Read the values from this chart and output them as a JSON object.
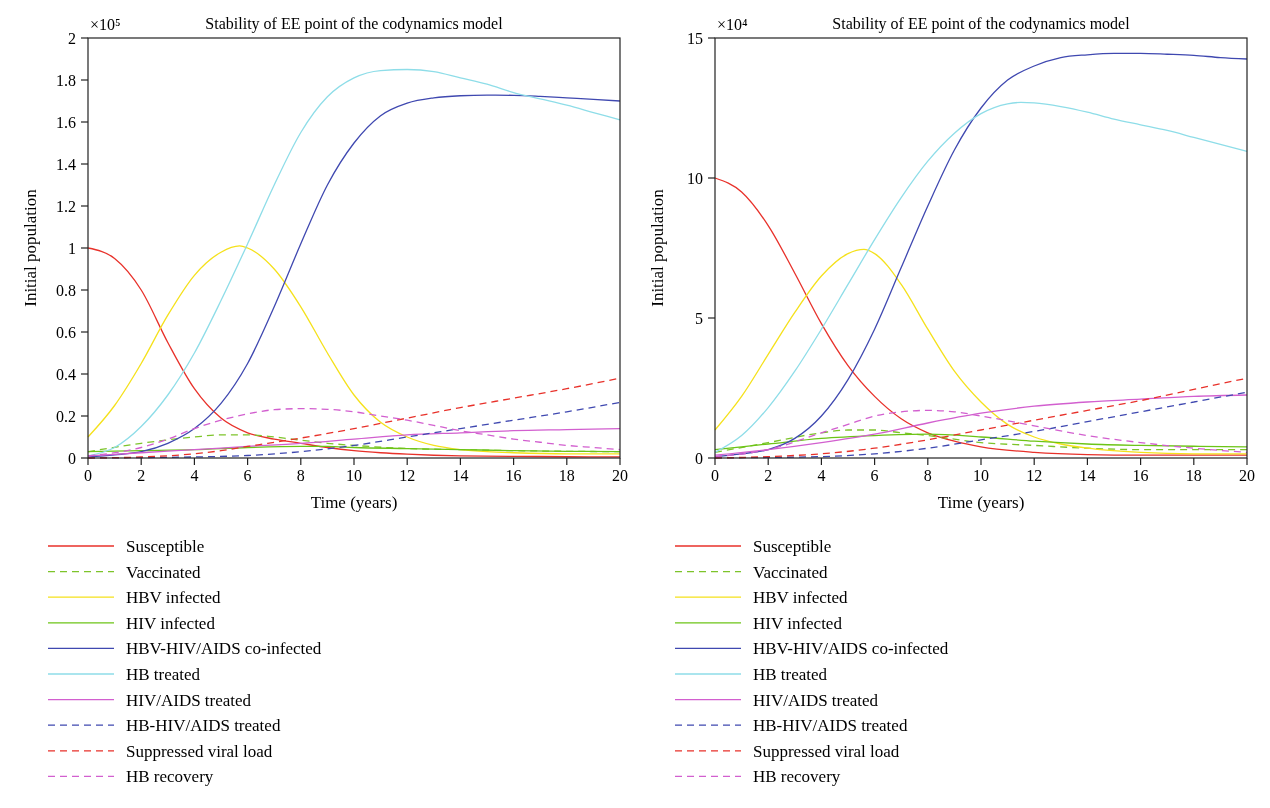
{
  "chart_data": [
    {
      "type": "line",
      "title": "Stability of EE point of the codynamics model",
      "xlabel": "Time (years)",
      "ylabel": "Initial population",
      "annotations": [
        "×10⁵"
      ],
      "xlim": [
        0,
        20
      ],
      "xticks": [
        0,
        2,
        4,
        6,
        8,
        10,
        12,
        14,
        16,
        18,
        20
      ],
      "ylim": [
        0,
        2
      ],
      "yticks": [
        0,
        0.2,
        0.4,
        0.6,
        0.8,
        1,
        1.2,
        1.4,
        1.6,
        1.8,
        2
      ],
      "grid": false,
      "legend": "bottom",
      "series": [
        {
          "name": "Susceptible",
          "color": "#e8312a",
          "line_style": "solid",
          "x": [
            0,
            1,
            2,
            3,
            4,
            5,
            6,
            7,
            8,
            9,
            10,
            11,
            12,
            13,
            14,
            16,
            18,
            20
          ],
          "values": [
            1.0,
            0.95,
            0.8,
            0.55,
            0.33,
            0.19,
            0.12,
            0.09,
            0.07,
            0.05,
            0.035,
            0.025,
            0.018,
            0.013,
            0.01,
            0.008,
            0.006,
            0.005
          ]
        },
        {
          "name": "Vaccinated",
          "color": "#7dc42a",
          "line_style": "dashed",
          "x": [
            0,
            2,
            4,
            5,
            6,
            7,
            8,
            9,
            10,
            12,
            14,
            16,
            18,
            20
          ],
          "values": [
            0.03,
            0.07,
            0.1,
            0.11,
            0.11,
            0.1,
            0.085,
            0.07,
            0.06,
            0.045,
            0.04,
            0.035,
            0.032,
            0.03
          ]
        },
        {
          "name": "HBV infected",
          "color": "#f5e11b",
          "line_style": "solid",
          "x": [
            0,
            1,
            2,
            3,
            4,
            5,
            5.7,
            6,
            7,
            8,
            9,
            10,
            11,
            12,
            13,
            14,
            15,
            16,
            18,
            20
          ],
          "values": [
            0.1,
            0.25,
            0.45,
            0.68,
            0.87,
            0.98,
            1.01,
            1.0,
            0.9,
            0.72,
            0.5,
            0.3,
            0.17,
            0.1,
            0.06,
            0.04,
            0.03,
            0.025,
            0.02,
            0.02
          ]
        },
        {
          "name": "HIV infected",
          "color": "#6cc417",
          "line_style": "solid",
          "x": [
            0,
            2,
            4,
            6,
            8,
            9,
            10,
            12,
            14,
            16,
            18,
            20
          ],
          "values": [
            0.03,
            0.035,
            0.04,
            0.05,
            0.055,
            0.055,
            0.05,
            0.045,
            0.04,
            0.035,
            0.032,
            0.03
          ]
        },
        {
          "name": "HBV-HIV/AIDS co-infected",
          "color": "#3f48b0",
          "line_style": "solid",
          "x": [
            0,
            1,
            2,
            3,
            4,
            5,
            6,
            7,
            8,
            9,
            10,
            11,
            12,
            13,
            14,
            15,
            16,
            17,
            18,
            19,
            20
          ],
          "values": [
            0.005,
            0.015,
            0.03,
            0.07,
            0.14,
            0.26,
            0.45,
            0.72,
            1.02,
            1.3,
            1.5,
            1.63,
            1.69,
            1.715,
            1.725,
            1.728,
            1.727,
            1.722,
            1.715,
            1.708,
            1.7
          ]
        },
        {
          "name": "HB treated",
          "color": "#8edde8",
          "line_style": "solid",
          "x": [
            0,
            1,
            2,
            3,
            4,
            5,
            6,
            7,
            8,
            9,
            10,
            11,
            12,
            13,
            14,
            15,
            16,
            17,
            18,
            19,
            20
          ],
          "values": [
            0.01,
            0.05,
            0.15,
            0.3,
            0.5,
            0.75,
            1.02,
            1.3,
            1.55,
            1.72,
            1.81,
            1.845,
            1.85,
            1.84,
            1.81,
            1.78,
            1.74,
            1.71,
            1.68,
            1.645,
            1.61
          ]
        },
        {
          "name": "HIV/AIDS treated",
          "color": "#d25fcf",
          "line_style": "solid",
          "x": [
            0,
            2,
            4,
            6,
            8,
            10,
            12,
            14,
            16,
            18,
            20
          ],
          "values": [
            0.01,
            0.025,
            0.04,
            0.055,
            0.07,
            0.09,
            0.11,
            0.12,
            0.13,
            0.135,
            0.14
          ]
        },
        {
          "name": "HB-HIV/AIDS treated",
          "color": "#3f48b0",
          "line_style": "dashed",
          "x": [
            0,
            2,
            4,
            6,
            8,
            10,
            12,
            14,
            16,
            18,
            20
          ],
          "values": [
            0,
            0.002,
            0.005,
            0.012,
            0.03,
            0.06,
            0.1,
            0.14,
            0.18,
            0.22,
            0.265
          ]
        },
        {
          "name": "Suppressed viral load",
          "color": "#e8312a",
          "line_style": "dashed",
          "x": [
            0,
            2,
            4,
            5,
            6,
            7,
            8,
            10,
            12,
            14,
            16,
            18,
            20
          ],
          "values": [
            0,
            0.005,
            0.02,
            0.035,
            0.055,
            0.075,
            0.095,
            0.14,
            0.19,
            0.24,
            0.285,
            0.33,
            0.38
          ]
        },
        {
          "name": "HB recovery",
          "color": "#d25fcf",
          "line_style": "dashed",
          "x": [
            0,
            2,
            3,
            4,
            5,
            6,
            7,
            8,
            9,
            10,
            11,
            12,
            13,
            14,
            15,
            16,
            17,
            18,
            19,
            20
          ],
          "values": [
            0.01,
            0.05,
            0.09,
            0.14,
            0.18,
            0.21,
            0.23,
            0.235,
            0.232,
            0.22,
            0.2,
            0.18,
            0.155,
            0.13,
            0.11,
            0.09,
            0.075,
            0.06,
            0.05,
            0.04
          ]
        }
      ]
    },
    {
      "type": "line",
      "title": "Stability of EE point of the codynamics model",
      "xlabel": "Time (years)",
      "ylabel": "Initial population",
      "annotations": [
        "×10⁴"
      ],
      "xlim": [
        0,
        20
      ],
      "xticks": [
        0,
        2,
        4,
        6,
        8,
        10,
        12,
        14,
        16,
        18,
        20
      ],
      "ylim": [
        0,
        15
      ],
      "yticks": [
        0,
        5,
        10,
        15
      ],
      "grid": false,
      "legend": "bottom",
      "series": [
        {
          "name": "Susceptible",
          "color": "#e8312a",
          "line_style": "solid",
          "x": [
            0,
            1,
            2,
            3,
            4,
            5,
            6,
            7,
            8,
            9,
            10,
            12,
            14,
            16,
            18,
            20
          ],
          "values": [
            10,
            9.5,
            8.3,
            6.6,
            4.8,
            3.3,
            2.2,
            1.4,
            0.9,
            0.6,
            0.4,
            0.2,
            0.12,
            0.1,
            0.1,
            0.1
          ]
        },
        {
          "name": "Vaccinated",
          "color": "#7dc42a",
          "line_style": "dashed",
          "x": [
            0,
            2,
            4,
            5,
            6,
            7,
            8,
            10,
            12,
            14,
            16,
            18,
            20
          ],
          "values": [
            0.2,
            0.55,
            0.9,
            1.0,
            1.0,
            0.9,
            0.8,
            0.55,
            0.45,
            0.35,
            0.3,
            0.3,
            0.3
          ]
        },
        {
          "name": "HBV infected",
          "color": "#f5e11b",
          "line_style": "solid",
          "x": [
            0,
            1,
            2,
            3,
            4,
            5,
            5.6,
            6,
            7,
            8,
            9,
            10,
            11,
            12,
            13,
            14,
            16,
            18,
            20
          ],
          "values": [
            1,
            2.2,
            3.7,
            5.2,
            6.5,
            7.3,
            7.45,
            7.3,
            6.2,
            4.6,
            3.1,
            2.0,
            1.2,
            0.75,
            0.5,
            0.35,
            0.2,
            0.15,
            0.15
          ]
        },
        {
          "name": "HIV infected",
          "color": "#6cc417",
          "line_style": "solid",
          "x": [
            0,
            2,
            4,
            6,
            8,
            10,
            12,
            14,
            16,
            18,
            20
          ],
          "values": [
            0.3,
            0.5,
            0.7,
            0.8,
            0.85,
            0.75,
            0.6,
            0.5,
            0.45,
            0.42,
            0.4
          ]
        },
        {
          "name": "HBV-HIV/AIDS co-infected",
          "color": "#3f48b0",
          "line_style": "solid",
          "x": [
            0,
            1,
            2,
            3,
            4,
            5,
            6,
            7,
            8,
            9,
            10,
            11,
            12,
            13,
            14,
            15,
            16,
            17,
            18,
            19,
            20
          ],
          "values": [
            0.05,
            0.15,
            0.3,
            0.7,
            1.5,
            2.8,
            4.6,
            6.8,
            9.0,
            11.0,
            12.5,
            13.5,
            14.0,
            14.3,
            14.4,
            14.45,
            14.45,
            14.42,
            14.38,
            14.3,
            14.25
          ]
        },
        {
          "name": "HB treated",
          "color": "#8edde8",
          "line_style": "solid",
          "x": [
            0,
            1,
            2,
            3,
            4,
            5,
            6,
            7,
            8,
            9,
            10,
            11,
            11.5,
            12,
            13,
            14,
            15,
            16,
            17,
            18,
            19,
            20
          ],
          "values": [
            0.2,
            0.8,
            1.8,
            3.1,
            4.6,
            6.2,
            7.8,
            9.3,
            10.6,
            11.6,
            12.3,
            12.65,
            12.7,
            12.68,
            12.55,
            12.35,
            12.1,
            11.9,
            11.7,
            11.45,
            11.2,
            10.95
          ]
        },
        {
          "name": "HIV/AIDS treated",
          "color": "#d25fcf",
          "line_style": "solid",
          "x": [
            0,
            2,
            4,
            6,
            8,
            10,
            12,
            14,
            16,
            18,
            20
          ],
          "values": [
            0.1,
            0.3,
            0.55,
            0.85,
            1.25,
            1.6,
            1.85,
            2.0,
            2.1,
            2.2,
            2.25
          ]
        },
        {
          "name": "HB-HIV/AIDS treated",
          "color": "#3f48b0",
          "line_style": "dashed",
          "x": [
            0,
            2,
            4,
            6,
            8,
            10,
            12,
            14,
            16,
            18,
            20
          ],
          "values": [
            0,
            0.02,
            0.05,
            0.15,
            0.35,
            0.65,
            0.95,
            1.3,
            1.65,
            2.0,
            2.35
          ]
        },
        {
          "name": "Suppressed viral load",
          "color": "#e8312a",
          "line_style": "dashed",
          "x": [
            0,
            2,
            4,
            6,
            8,
            10,
            12,
            14,
            16,
            18,
            20
          ],
          "values": [
            0,
            0.05,
            0.15,
            0.35,
            0.65,
            1.0,
            1.35,
            1.7,
            2.05,
            2.45,
            2.85
          ]
        },
        {
          "name": "HB recovery",
          "color": "#d25fcf",
          "line_style": "dashed",
          "x": [
            0,
            2,
            4,
            5,
            6,
            7,
            8,
            9,
            10,
            12,
            14,
            16,
            18,
            20
          ],
          "values": [
            0.05,
            0.3,
            0.9,
            1.2,
            1.5,
            1.65,
            1.7,
            1.65,
            1.5,
            1.15,
            0.8,
            0.55,
            0.35,
            0.2
          ]
        }
      ]
    }
  ]
}
